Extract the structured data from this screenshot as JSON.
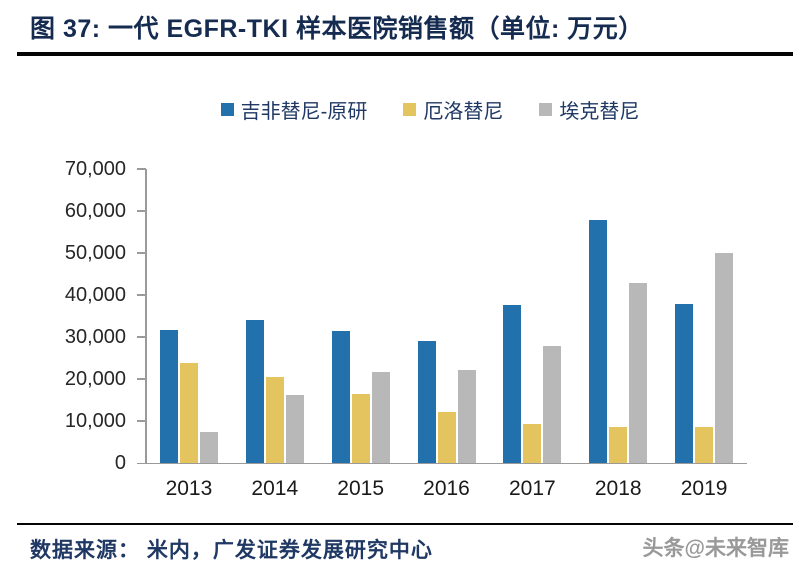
{
  "header": {
    "title": "图 37: 一代 EGFR-TKI 样本医院销售额（单位: 万元）"
  },
  "chart_data": {
    "type": "bar",
    "title": "一代 EGFR-TKI 样本医院销售额（单位: 万元）",
    "categories": [
      "2013",
      "2014",
      "2015",
      "2016",
      "2017",
      "2018",
      "2019"
    ],
    "series": [
      {
        "name": "吉非替尼-原研",
        "color": "#2271AC",
        "values": [
          31700,
          34100,
          31500,
          29100,
          37600,
          57900,
          37800
        ]
      },
      {
        "name": "厄洛替尼",
        "color": "#E3C45F",
        "values": [
          23900,
          20400,
          16400,
          12100,
          9300,
          8700,
          8700
        ]
      },
      {
        "name": "埃克替尼",
        "color": "#B8B8B8",
        "values": [
          7500,
          16100,
          21600,
          22200,
          27800,
          42800,
          50100
        ]
      }
    ],
    "xlabel": "",
    "ylabel": "",
    "ylim": [
      0,
      70000
    ],
    "ytick_step": 10000,
    "ytick_labels": [
      "0",
      "10,000",
      "20,000",
      "30,000",
      "40,000",
      "50,000",
      "60,000",
      "70,000"
    ],
    "grid": false,
    "legend_position": "top",
    "axis_color": "#9a9a9a"
  },
  "footer": {
    "source": "数据来源： 米内，广发证券发展研究中心",
    "watermark": "头条@未来智库"
  }
}
